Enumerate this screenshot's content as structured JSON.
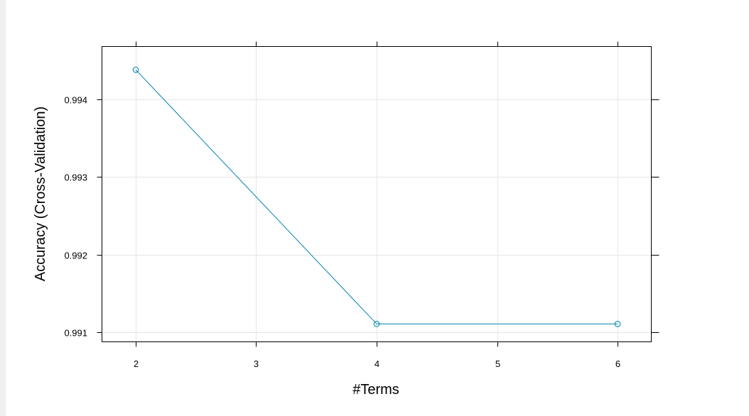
{
  "chart_data": {
    "type": "line",
    "xlabel": "#Terms",
    "ylabel": "Accuracy (Cross-Validation)",
    "x_ticks": [
      "2",
      "3",
      "4",
      "5",
      "6"
    ],
    "y_ticks": [
      "0.991",
      "0.992",
      "0.993",
      "0.994"
    ],
    "xlim": [
      1.72,
      6.28
    ],
    "ylim": [
      0.99088,
      0.99468
    ],
    "grid": true,
    "series": [
      {
        "x": [
          2,
          4,
          6
        ],
        "y": [
          0.99438,
          0.99111,
          0.99111
        ],
        "color": "#0080b0",
        "marker": "open-circle"
      }
    ]
  }
}
